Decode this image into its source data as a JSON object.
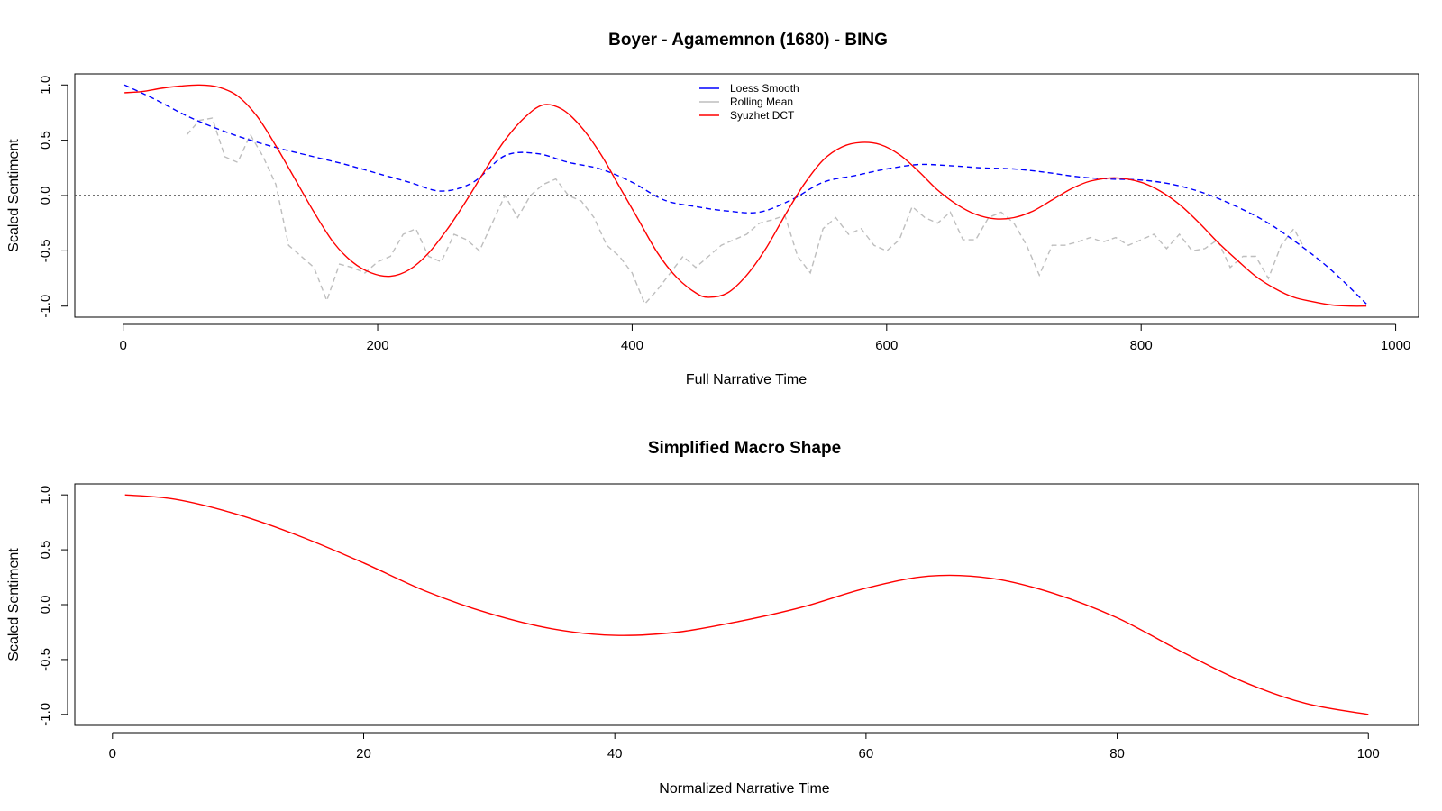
{
  "chart_data": [
    {
      "type": "line",
      "title": "Boyer - Agamemnon (1680)  - BING",
      "xlabel": "Full Narrative Time",
      "ylabel": "Scaled Sentiment",
      "xlim": [
        -38,
        1018
      ],
      "ylim": [
        -1.1,
        1.1
      ],
      "xticks": [
        0,
        200,
        400,
        600,
        800,
        1000
      ],
      "yticks": [
        -1.0,
        -0.5,
        0.0,
        0.5,
        1.0
      ],
      "xtick_labels": [
        "0",
        "200",
        "400",
        "600",
        "800",
        "1000"
      ],
      "ytick_labels": [
        "-1.0",
        "-0.5",
        "0.0",
        "0.5",
        "1.0"
      ],
      "reference_line": {
        "y": 0,
        "style": "dotted"
      },
      "legend": {
        "position": "top-center",
        "entries": [
          {
            "label": "Loess Smooth",
            "color": "#0000ff"
          },
          {
            "label": "Rolling Mean",
            "color": "#bebebe"
          },
          {
            "label": "Syuzhet DCT",
            "color": "#ff0000"
          }
        ]
      },
      "series": [
        {
          "name": "Loess Smooth",
          "color": "#0000ff",
          "style": "dashed",
          "x": [
            1,
            25,
            50,
            75,
            100,
            125,
            150,
            175,
            200,
            225,
            250,
            275,
            300,
            325,
            350,
            375,
            400,
            425,
            450,
            475,
            500,
            525,
            550,
            575,
            600,
            625,
            650,
            675,
            700,
            725,
            750,
            775,
            800,
            825,
            850,
            875,
            900,
            925,
            950,
            977
          ],
          "y": [
            1.0,
            0.87,
            0.72,
            0.6,
            0.5,
            0.42,
            0.35,
            0.28,
            0.2,
            0.12,
            0.04,
            0.12,
            0.36,
            0.38,
            0.3,
            0.24,
            0.12,
            -0.04,
            -0.1,
            -0.14,
            -0.15,
            -0.04,
            0.12,
            0.18,
            0.24,
            0.28,
            0.27,
            0.25,
            0.24,
            0.21,
            0.17,
            0.15,
            0.14,
            0.1,
            0.02,
            -0.1,
            -0.25,
            -0.45,
            -0.68,
            -0.98
          ]
        },
        {
          "name": "Rolling Mean",
          "color": "#bebebe",
          "style": "dashed",
          "x": [
            50,
            60,
            70,
            80,
            90,
            100,
            110,
            120,
            130,
            140,
            150,
            160,
            170,
            180,
            190,
            200,
            210,
            220,
            230,
            240,
            250,
            260,
            270,
            280,
            290,
            300,
            310,
            320,
            330,
            340,
            350,
            360,
            370,
            380,
            390,
            400,
            410,
            420,
            430,
            440,
            450,
            460,
            470,
            480,
            490,
            500,
            510,
            520,
            530,
            540,
            550,
            560,
            570,
            580,
            590,
            600,
            610,
            620,
            630,
            640,
            650,
            660,
            670,
            680,
            690,
            700,
            710,
            720,
            730,
            740,
            750,
            760,
            770,
            780,
            790,
            800,
            810,
            820,
            830,
            840,
            850,
            860,
            870,
            880,
            890,
            900,
            910,
            920,
            927
          ],
          "y": [
            0.55,
            0.68,
            0.7,
            0.35,
            0.3,
            0.55,
            0.35,
            0.1,
            -0.45,
            -0.55,
            -0.65,
            -0.95,
            -0.62,
            -0.65,
            -0.7,
            -0.6,
            -0.55,
            -0.35,
            -0.3,
            -0.55,
            -0.6,
            -0.35,
            -0.4,
            -0.5,
            -0.25,
            0.0,
            -0.2,
            0.0,
            0.1,
            0.15,
            0.0,
            -0.05,
            -0.2,
            -0.45,
            -0.55,
            -0.7,
            -0.98,
            -0.85,
            -0.7,
            -0.55,
            -0.65,
            -0.55,
            -0.45,
            -0.4,
            -0.35,
            -0.25,
            -0.22,
            -0.18,
            -0.55,
            -0.7,
            -0.3,
            -0.2,
            -0.35,
            -0.3,
            -0.45,
            -0.5,
            -0.4,
            -0.1,
            -0.2,
            -0.25,
            -0.15,
            -0.4,
            -0.4,
            -0.2,
            -0.15,
            -0.25,
            -0.45,
            -0.72,
            -0.45,
            -0.45,
            -0.42,
            -0.38,
            -0.42,
            -0.38,
            -0.45,
            -0.4,
            -0.35,
            -0.48,
            -0.35,
            -0.5,
            -0.48,
            -0.4,
            -0.65,
            -0.55,
            -0.55,
            -0.75,
            -0.45,
            -0.3,
            -0.45
          ]
        },
        {
          "name": "Syuzhet DCT",
          "color": "#ff0000",
          "style": "solid",
          "x": [
            1,
            15,
            30,
            45,
            60,
            75,
            90,
            105,
            120,
            135,
            150,
            165,
            180,
            195,
            210,
            225,
            240,
            255,
            270,
            285,
            300,
            315,
            330,
            345,
            360,
            375,
            390,
            405,
            420,
            435,
            450,
            460,
            475,
            490,
            505,
            520,
            535,
            550,
            565,
            580,
            595,
            610,
            625,
            640,
            655,
            670,
            685,
            700,
            715,
            730,
            745,
            760,
            780,
            800,
            815,
            830,
            845,
            860,
            875,
            890,
            905,
            920,
            935,
            950,
            965,
            977
          ],
          "y": [
            0.93,
            0.94,
            0.97,
            0.99,
            1.0,
            0.98,
            0.9,
            0.72,
            0.45,
            0.15,
            -0.15,
            -0.42,
            -0.6,
            -0.7,
            -0.73,
            -0.67,
            -0.52,
            -0.3,
            -0.04,
            0.24,
            0.5,
            0.7,
            0.82,
            0.78,
            0.62,
            0.38,
            0.08,
            -0.22,
            -0.52,
            -0.74,
            -0.88,
            -0.92,
            -0.88,
            -0.72,
            -0.48,
            -0.18,
            0.1,
            0.32,
            0.44,
            0.48,
            0.46,
            0.37,
            0.22,
            0.05,
            -0.08,
            -0.17,
            -0.21,
            -0.2,
            -0.14,
            -0.04,
            0.06,
            0.13,
            0.16,
            0.12,
            0.04,
            -0.08,
            -0.24,
            -0.42,
            -0.58,
            -0.73,
            -0.84,
            -0.92,
            -0.96,
            -0.99,
            -1.0,
            -1.0
          ]
        }
      ]
    },
    {
      "type": "line",
      "title": "Simplified Macro Shape",
      "xlabel": "Normalized Narrative Time",
      "ylabel": "Scaled Sentiment",
      "xlim": [
        -3,
        104
      ],
      "ylim": [
        -1.1,
        1.1
      ],
      "xticks": [
        0,
        20,
        40,
        60,
        80,
        100
      ],
      "yticks": [
        -1.0,
        -0.5,
        0.0,
        0.5,
        1.0
      ],
      "xtick_labels": [
        "0",
        "20",
        "40",
        "60",
        "80",
        "100"
      ],
      "ytick_labels": [
        "-1.0",
        "-0.5",
        "0.0",
        "0.5",
        "1.0"
      ],
      "series": [
        {
          "color": "#ff0000",
          "style": "solid",
          "x": [
            1,
            5,
            10,
            15,
            20,
            25,
            30,
            35,
            40,
            45,
            50,
            55,
            60,
            65,
            70,
            75,
            80,
            85,
            90,
            95,
            100
          ],
          "y": [
            1.0,
            0.96,
            0.82,
            0.62,
            0.38,
            0.12,
            -0.08,
            -0.22,
            -0.28,
            -0.25,
            -0.15,
            -0.02,
            0.15,
            0.26,
            0.24,
            0.1,
            -0.12,
            -0.42,
            -0.7,
            -0.9,
            -1.0
          ]
        }
      ]
    }
  ]
}
